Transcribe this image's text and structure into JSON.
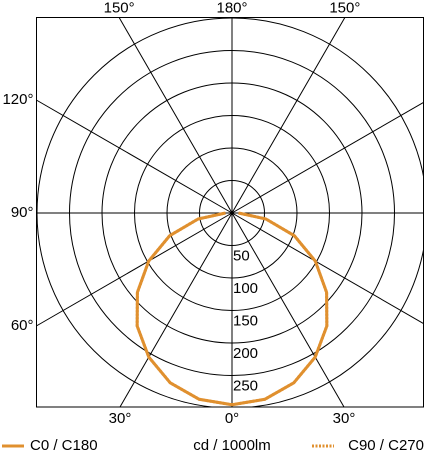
{
  "chart_data": {
    "type": "polar",
    "unit_label": "cd / 1000lm",
    "angles": [
      0,
      10,
      20,
      30,
      40,
      50,
      60,
      70,
      80,
      90
    ],
    "series": [
      {
        "name": "C0 / C180",
        "color": "#e0902f",
        "style": "solid",
        "values": [
          295,
          291,
          278,
          256,
          227,
          190,
          148,
          102,
          53,
          10
        ]
      },
      {
        "name": "C90 / C270",
        "color": "#e0902f",
        "style": "dotted",
        "values": [
          295,
          291,
          278,
          256,
          227,
          190,
          148,
          102,
          53,
          10
        ]
      }
    ],
    "rlim": [
      0,
      300
    ],
    "rticks": [
      50,
      100,
      150,
      200,
      250
    ],
    "angle_ticks": [
      {
        "value": -150,
        "label": "150°"
      },
      {
        "value": 180,
        "label": "180°"
      },
      {
        "value": 150,
        "label": "150°"
      },
      {
        "value": -120,
        "label": "120°"
      },
      {
        "value": -90,
        "label": "90°"
      },
      {
        "value": -60,
        "label": "60°"
      },
      {
        "value": -30,
        "label": "30°"
      },
      {
        "value": 0,
        "label": "0°"
      },
      {
        "value": 30,
        "label": "30°"
      }
    ]
  }
}
